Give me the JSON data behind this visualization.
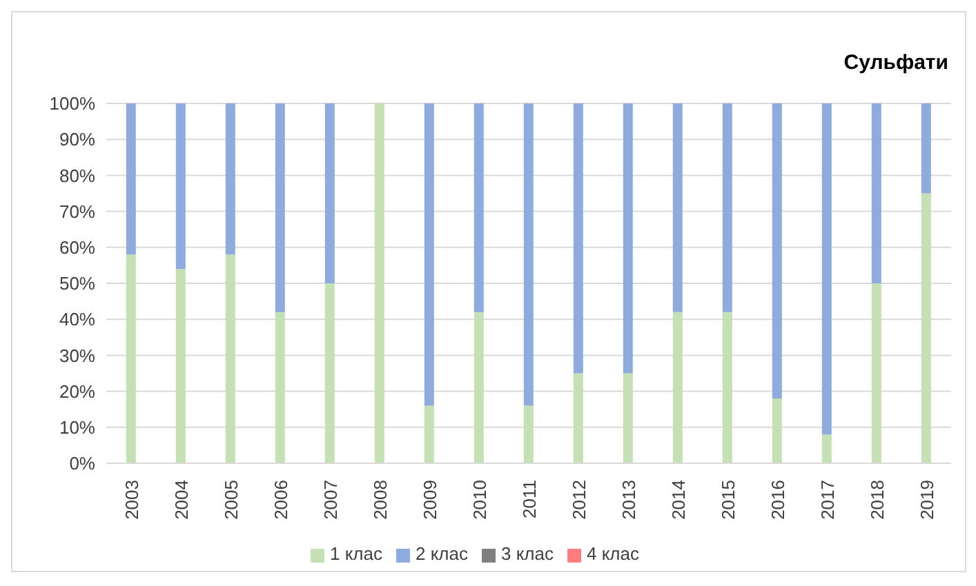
{
  "chart_data": {
    "type": "bar",
    "title": "Сульфати",
    "stacked": true,
    "categories": [
      "2003",
      "2004",
      "2005",
      "2006",
      "2007",
      "2008",
      "2009",
      "2010",
      "2011",
      "2012",
      "2013",
      "2014",
      "2015",
      "2016",
      "2017",
      "2018",
      "2019"
    ],
    "series": [
      {
        "name": "1 клас",
        "color": "#c5e0b4",
        "values": [
          58,
          54,
          58,
          42,
          50,
          100,
          16,
          42,
          16,
          25,
          25,
          42,
          42,
          18,
          8,
          50,
          75
        ]
      },
      {
        "name": "2 клас",
        "color": "#8faadc",
        "values": [
          42,
          46,
          42,
          58,
          50,
          0,
          84,
          58,
          84,
          75,
          75,
          58,
          58,
          82,
          92,
          50,
          25
        ]
      },
      {
        "name": "3 клас",
        "color": "#7f7f7f",
        "values": [
          0,
          0,
          0,
          0,
          0,
          0,
          0,
          0,
          0,
          0,
          0,
          0,
          0,
          0,
          0,
          0,
          0
        ]
      },
      {
        "name": "4 клас",
        "color": "#ff7c80",
        "values": [
          0,
          0,
          0,
          0,
          0,
          0,
          0,
          0,
          0,
          0,
          0,
          0,
          0,
          0,
          0,
          0,
          0
        ]
      }
    ],
    "ylim": [
      0,
      100
    ],
    "yticks": [
      {
        "value": 0,
        "label": "0%"
      },
      {
        "value": 10,
        "label": "10%"
      },
      {
        "value": 20,
        "label": "20%"
      },
      {
        "value": 30,
        "label": "30%"
      },
      {
        "value": 40,
        "label": "40%"
      },
      {
        "value": 50,
        "label": "50%"
      },
      {
        "value": 60,
        "label": "60%"
      },
      {
        "value": 70,
        "label": "70%"
      },
      {
        "value": 80,
        "label": "80%"
      },
      {
        "value": 90,
        "label": "90%"
      },
      {
        "value": 100,
        "label": "100%"
      }
    ],
    "grid": "y",
    "legend": "bottom"
  }
}
